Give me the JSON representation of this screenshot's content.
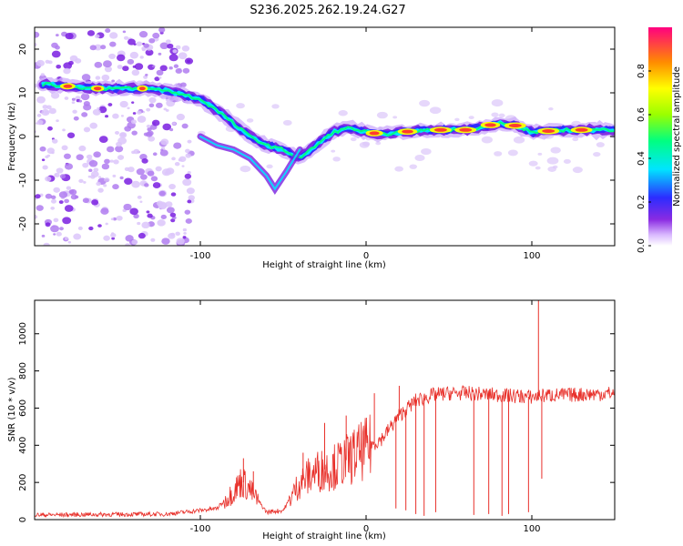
{
  "title": "S236.2025.262.19.24.G27",
  "chart_data": [
    {
      "type": "heatmap",
      "name": "spectrogram",
      "xlabel": "Height of straight line (km)",
      "ylabel": "Frequency (Hz)",
      "xlim": [
        -200,
        150
      ],
      "ylim": [
        -25,
        25
      ],
      "xticks": [
        -100,
        0,
        100
      ],
      "xtick_labels": [
        "-100",
        "0",
        "100"
      ],
      "yticks": [
        -20,
        -10,
        0,
        10,
        20
      ],
      "ytick_labels": [
        "-20",
        "-10",
        "0",
        "10",
        "20"
      ],
      "ridge": {
        "x": [
          -195,
          -180,
          -165,
          -150,
          -135,
          -120,
          -110,
          -100,
          -90,
          -80,
          -70,
          -60,
          -50,
          -40,
          -30,
          -20,
          -10,
          0,
          10,
          20,
          40,
          60,
          80,
          90,
          100,
          120,
          150
        ],
        "y": [
          12,
          11.5,
          11,
          11,
          11,
          10.5,
          9.5,
          8.5,
          6,
          3,
          0,
          -2,
          -3,
          -5,
          -2,
          1,
          2,
          1,
          0.5,
          1,
          1.5,
          1.5,
          3,
          2.5,
          1,
          1.5,
          1.5
        ]
      },
      "colorbar": {
        "label": "Normalized spectral amplitude",
        "ticks": [
          0.0,
          0.2,
          0.4,
          0.6,
          0.8
        ],
        "tick_labels": [
          "0.0",
          "0.2",
          "0.4",
          "0.6",
          "0.8"
        ],
        "range": [
          0,
          1
        ]
      }
    },
    {
      "type": "line",
      "name": "snr",
      "xlabel": "Height of straight line (km)",
      "ylabel": "SNR (10 * v/v)",
      "xlim": [
        -200,
        150
      ],
      "ylim": [
        0,
        1180
      ],
      "xticks": [
        -100,
        0,
        100
      ],
      "xtick_labels": [
        "-100",
        "0",
        "100"
      ],
      "yticks": [
        0,
        200,
        400,
        600,
        800,
        1000
      ],
      "ytick_labels": [
        "0",
        "200",
        "400",
        "600",
        "800",
        "1000"
      ],
      "color": "#e8302a",
      "envelope": {
        "x": [
          -200,
          -120,
          -90,
          -80,
          -75,
          -70,
          -60,
          -50,
          -40,
          -30,
          -20,
          -10,
          0,
          10,
          20,
          30,
          40,
          50,
          60,
          80,
          100,
          110,
          120,
          150
        ],
        "y": [
          25,
          30,
          60,
          150,
          210,
          160,
          40,
          50,
          200,
          260,
          280,
          330,
          380,
          440,
          560,
          640,
          670,
          680,
          680,
          670,
          660,
          670,
          670,
          680
        ]
      },
      "spikes": [
        {
          "x": -74,
          "y": 330
        },
        {
          "x": -68,
          "y": 260
        },
        {
          "x": -38,
          "y": 360
        },
        {
          "x": -25,
          "y": 520
        },
        {
          "x": -12,
          "y": 560
        },
        {
          "x": 5,
          "y": 680
        },
        {
          "x": 20,
          "y": 720
        },
        {
          "x": 104,
          "y": 1180
        }
      ],
      "dropouts": [
        {
          "x": 18,
          "y": 60
        },
        {
          "x": 24,
          "y": 50
        },
        {
          "x": 30,
          "y": 30
        },
        {
          "x": 35,
          "y": 20
        },
        {
          "x": 42,
          "y": 40
        },
        {
          "x": 65,
          "y": 25
        },
        {
          "x": 74,
          "y": 30
        },
        {
          "x": 82,
          "y": 20
        },
        {
          "x": 86,
          "y": 30
        },
        {
          "x": 98,
          "y": 40
        },
        {
          "x": 106,
          "y": 220
        }
      ]
    }
  ],
  "colors": {
    "frame": "#000000",
    "snr_line": "#e8302a",
    "scatter": "#8a2be2"
  }
}
